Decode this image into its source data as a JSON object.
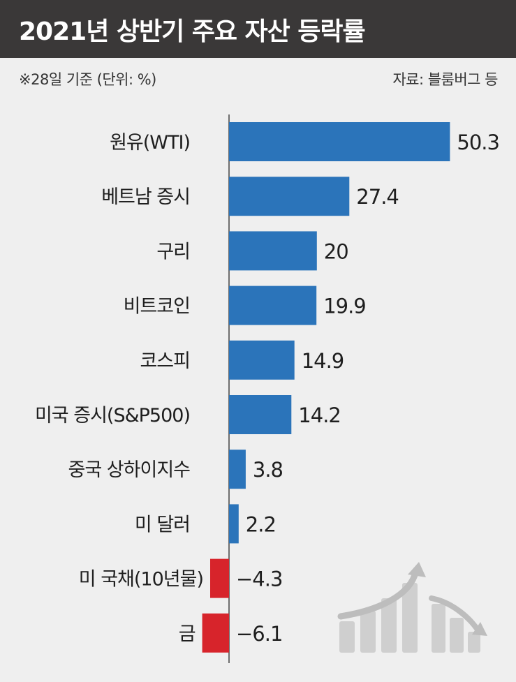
{
  "header": {
    "title": "2021년 상반기 주요 자산 등락률",
    "note_left": "※28일 기준 (단위: %)",
    "note_right": "자료: 블룸버그 등"
  },
  "colors": {
    "title_bg": "#3a3838",
    "positive": "#2b74ba",
    "negative": "#d7242b",
    "background": "#efefef"
  },
  "chart_data": {
    "type": "bar",
    "orientation": "horizontal",
    "title": "2021년 상반기 주요 자산 등락률",
    "unit": "%",
    "categories": [
      "원유(WTI)",
      "베트남 증시",
      "구리",
      "비트코인",
      "코스피",
      "미국 증시(S&P500)",
      "중국 상하이지수",
      "미 달러",
      "미 국채(10년물)",
      "금"
    ],
    "values": [
      50.3,
      27.4,
      20,
      19.9,
      14.9,
      14.2,
      3.8,
      2.2,
      -4.3,
      -6.1
    ],
    "value_labels": [
      "50.3",
      "27.4",
      "20",
      "19.9",
      "14.9",
      "14.2",
      "3.8",
      "2.2",
      "−4.3",
      "−6.1"
    ],
    "grid": false,
    "legend": "none"
  }
}
